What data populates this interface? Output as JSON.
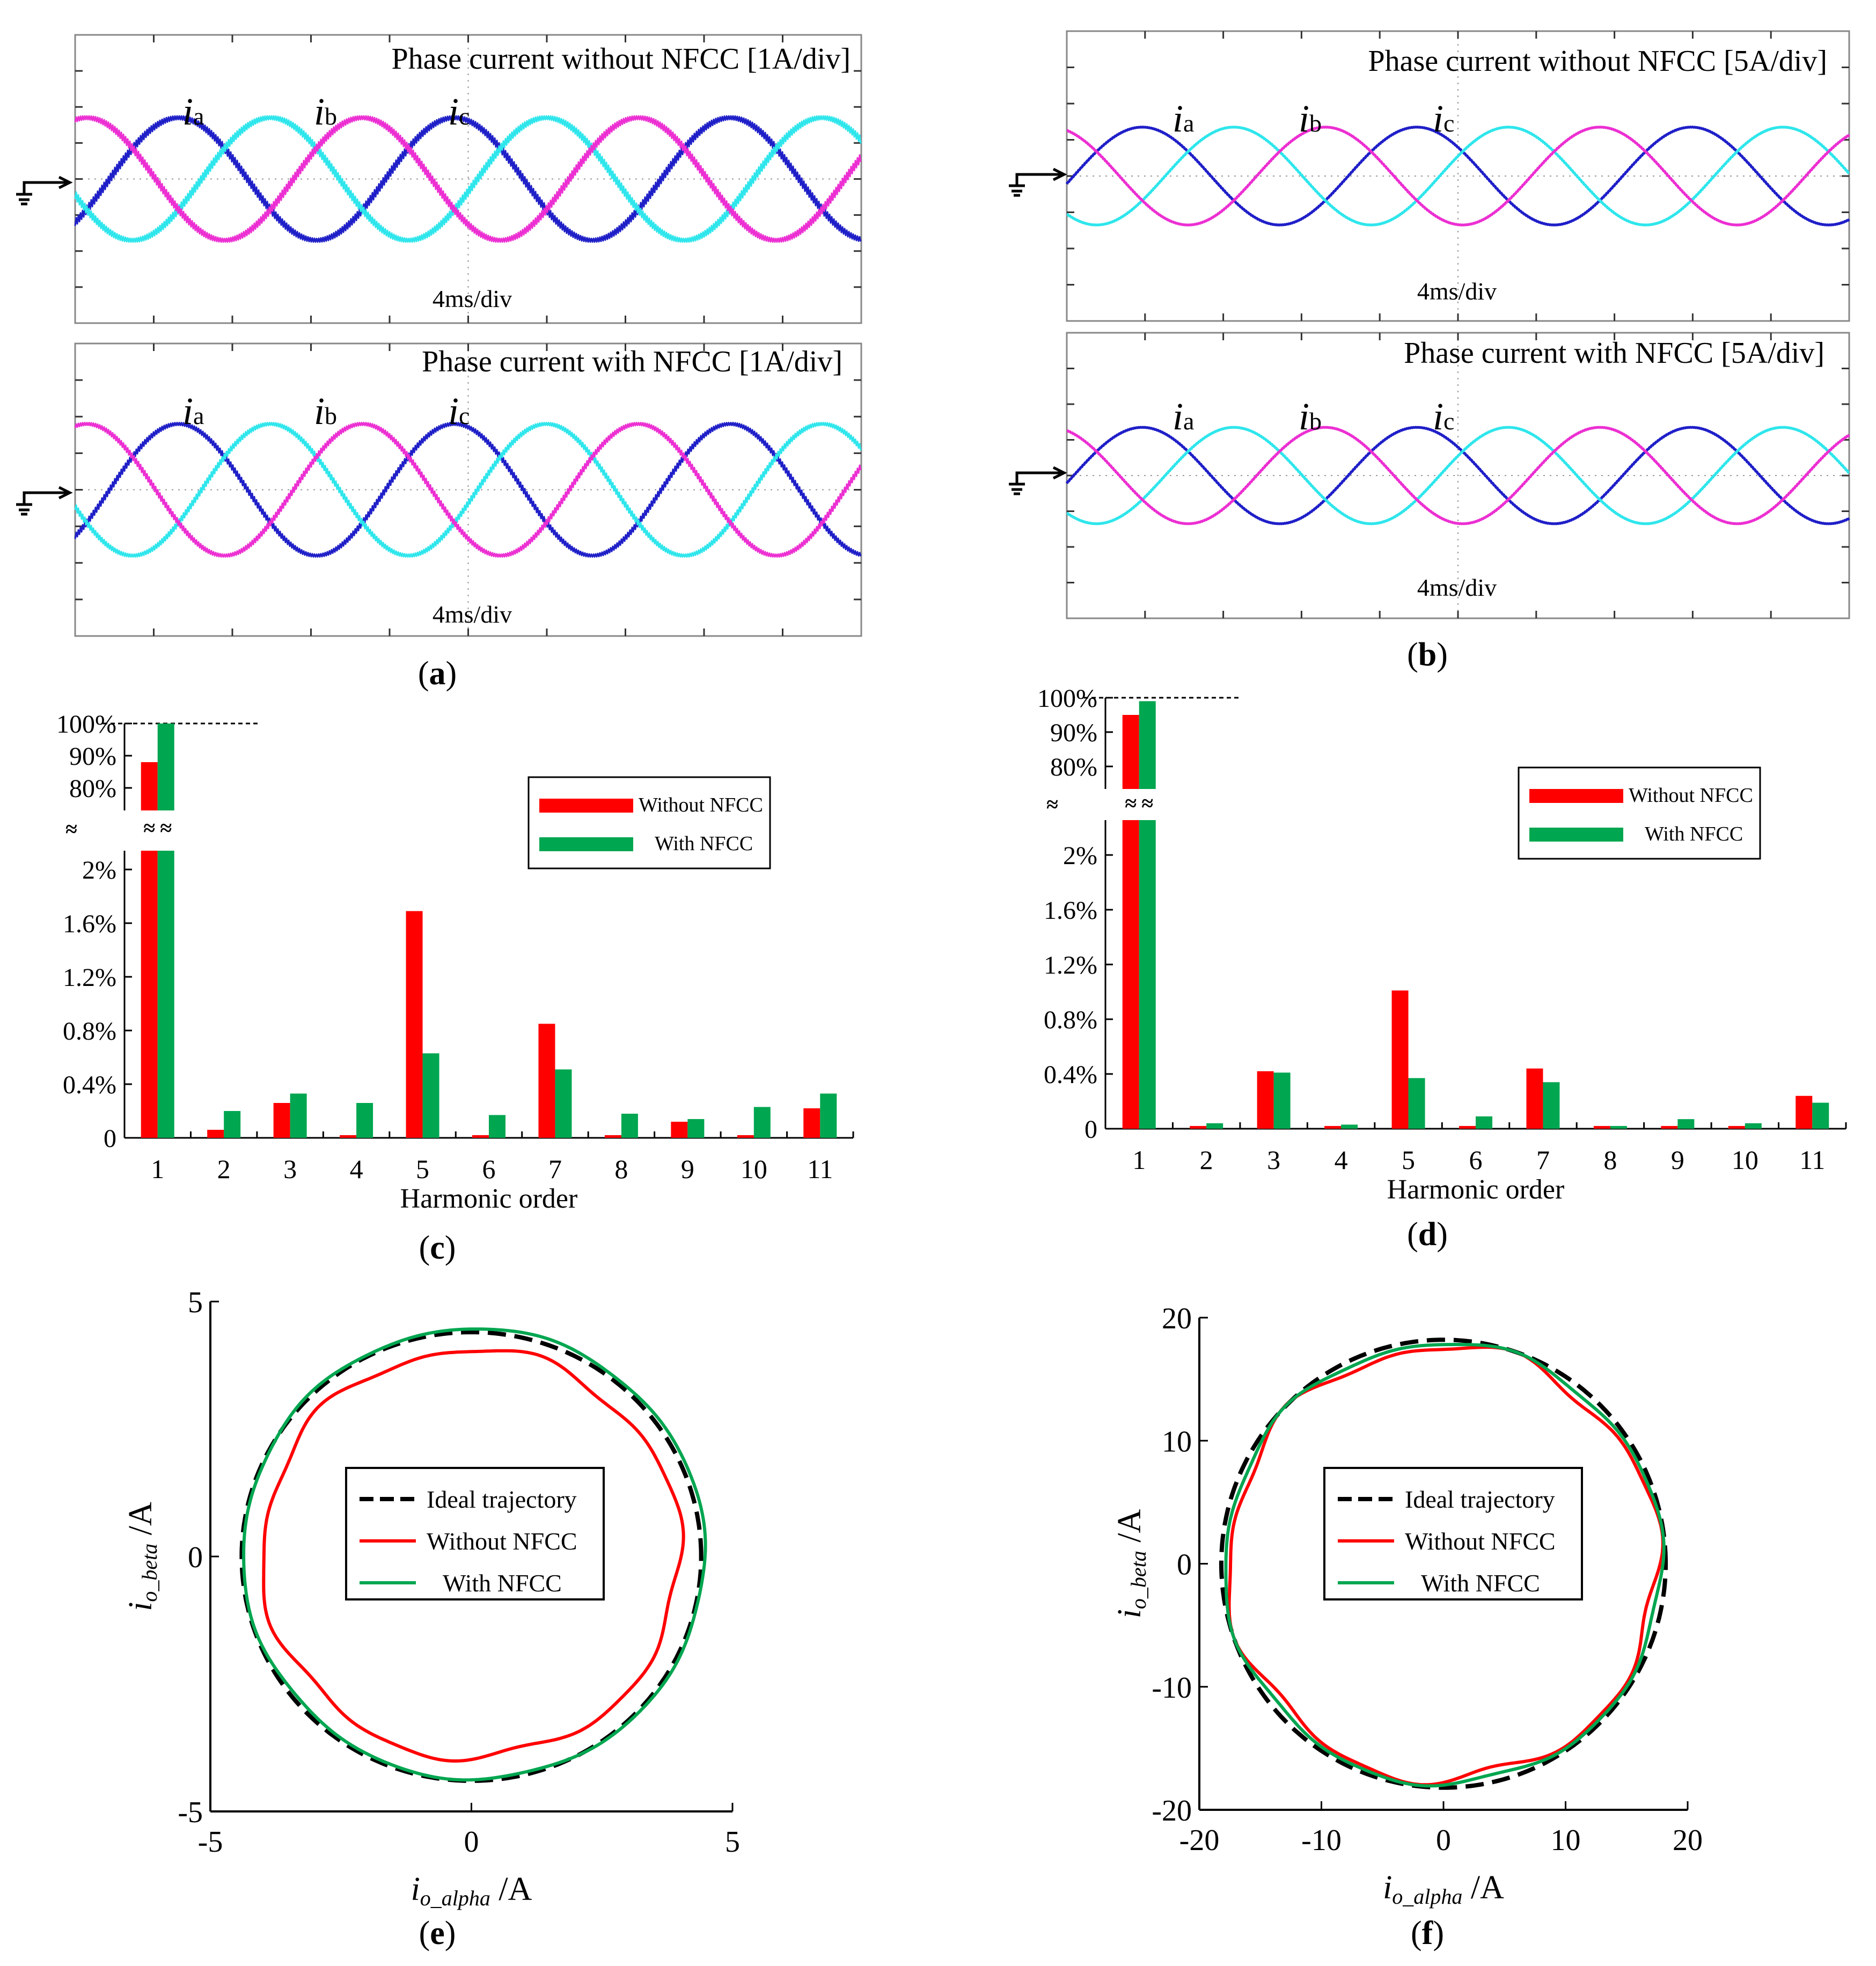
{
  "colors": {
    "phase_a": "#1f1fc8",
    "phase_b": "#2ee6ec",
    "phase_c": "#ec2fd2",
    "without": "#ff0000",
    "with": "#00a650",
    "ideal": "#000000"
  },
  "scopes": [
    {
      "panel": "a",
      "title": "Phase current without NFCC [1A/div]",
      "time": "4ms/div",
      "peak_div": 1.7,
      "ripple_div": 0.12
    },
    {
      "panel": "a",
      "title": "Phase current with NFCC [1A/div]",
      "time": "4ms/div",
      "peak_div": 1.8,
      "ripple_div": 0.09
    },
    {
      "panel": "b",
      "title": "Phase current without NFCC [5A/div]",
      "time": "4ms/div",
      "peak_div": 1.35,
      "ripple_div": 0.01
    },
    {
      "panel": "b",
      "title": "Phase current with NFCC [5A/div]",
      "time": "4ms/div",
      "peak_div": 1.35,
      "ripple_div": 0.01
    }
  ],
  "phase_labels": {
    "a": {
      "main": "i",
      "sub": "a"
    },
    "b": {
      "main": "i",
      "sub": "b"
    },
    "c": {
      "main": "i",
      "sub": "c"
    }
  },
  "panel_labels": {
    "a": "a",
    "b": "b",
    "c": "c",
    "d": "d",
    "e": "e",
    "f": "f"
  },
  "chart_data": [
    {
      "panel": "c",
      "type": "bar",
      "xlabel": "Harmonic order",
      "categories": [
        "1",
        "2",
        "3",
        "4",
        "5",
        "6",
        "7",
        "8",
        "9",
        "10",
        "11"
      ],
      "upper_ticks": [
        "100%",
        "90%",
        "80%"
      ],
      "lower_ticks": [
        "0",
        "0.4%",
        "0.8%",
        "1.2%",
        "1.6%",
        "2%"
      ],
      "break_symbol": "≈",
      "legend": [
        "Without NFCC",
        "With NFCC"
      ],
      "series": [
        {
          "name": "Without NFCC",
          "values": [
            88,
            0.06,
            0.26,
            0.02,
            1.69,
            0.02,
            0.85,
            0.02,
            0.12,
            0.02,
            0.22
          ]
        },
        {
          "name": "With NFCC",
          "values": [
            100,
            0.2,
            0.33,
            0.26,
            0.63,
            0.17,
            0.51,
            0.18,
            0.14,
            0.23,
            0.33
          ]
        }
      ]
    },
    {
      "panel": "d",
      "type": "bar",
      "xlabel": "Harmonic order",
      "categories": [
        "1",
        "2",
        "3",
        "4",
        "5",
        "6",
        "7",
        "8",
        "9",
        "10",
        "11"
      ],
      "upper_ticks": [
        "100%",
        "90%",
        "80%"
      ],
      "lower_ticks": [
        "0",
        "0.4%",
        "0.8%",
        "1.2%",
        "1.6%",
        "2%"
      ],
      "break_symbol": "≈",
      "legend": [
        "Without NFCC",
        "With NFCC"
      ],
      "series": [
        {
          "name": "Without NFCC",
          "values": [
            95,
            0.02,
            0.42,
            0.02,
            1.01,
            0.02,
            0.44,
            0.02,
            0.02,
            0.02,
            0.24
          ]
        },
        {
          "name": "With NFCC",
          "values": [
            99,
            0.04,
            0.41,
            0.03,
            0.37,
            0.09,
            0.34,
            0.02,
            0.07,
            0.04,
            0.19
          ]
        }
      ]
    },
    {
      "panel": "e",
      "type": "line",
      "xlim": [
        -5,
        5
      ],
      "ylim": [
        -5,
        5
      ],
      "xticks": [
        "-5",
        "0",
        "5"
      ],
      "yticks": [
        "5",
        "0",
        "-5"
      ],
      "xlabel": {
        "main": "i",
        "sub": "o_alpha",
        "unit": " /A"
      },
      "ylabel": {
        "main": "i",
        "sub": "o_beta",
        "unit": " /A"
      },
      "legend": [
        "Ideal trajectory",
        "Without NFCC",
        "With NFCC"
      ],
      "series": [
        {
          "name": "Ideal trajectory",
          "radius": 4.4,
          "cx": 0,
          "cy": 0,
          "wobble": 0,
          "style": "dashed"
        },
        {
          "name": "Without NFCC",
          "radius": 4.0,
          "cx": 0,
          "cy": 0.05,
          "wobble": 0.07,
          "style": "solid"
        },
        {
          "name": "With NFCC",
          "radius": 4.42,
          "cx": 0.05,
          "cy": 0.05,
          "wobble": 0.02,
          "style": "solid"
        }
      ]
    },
    {
      "panel": "f",
      "type": "line",
      "xlim": [
        -20,
        20
      ],
      "ylim": [
        -20,
        20
      ],
      "xticks": [
        "-20",
        "-10",
        "0",
        "10",
        "20"
      ],
      "yticks": [
        "20",
        "10",
        "0",
        "-10",
        "-20"
      ],
      "xlabel": {
        "main": "i",
        "sub": "o_alpha",
        "unit": " /A"
      },
      "ylabel": {
        "main": "i",
        "sub": "o_beta",
        "unit": " /A"
      },
      "legend": [
        "Ideal trajectory",
        "Without NFCC",
        "With NFCC"
      ],
      "series": [
        {
          "name": "Ideal trajectory",
          "radius": 18.2,
          "cx": 0,
          "cy": 0,
          "wobble": 0,
          "style": "dashed"
        },
        {
          "name": "Without NFCC",
          "radius": 17.6,
          "cx": 0,
          "cy": 0,
          "wobble": 0.4,
          "style": "solid"
        },
        {
          "name": "With NFCC",
          "radius": 17.9,
          "cx": 0,
          "cy": 0,
          "wobble": 0.2,
          "style": "solid"
        }
      ]
    }
  ]
}
